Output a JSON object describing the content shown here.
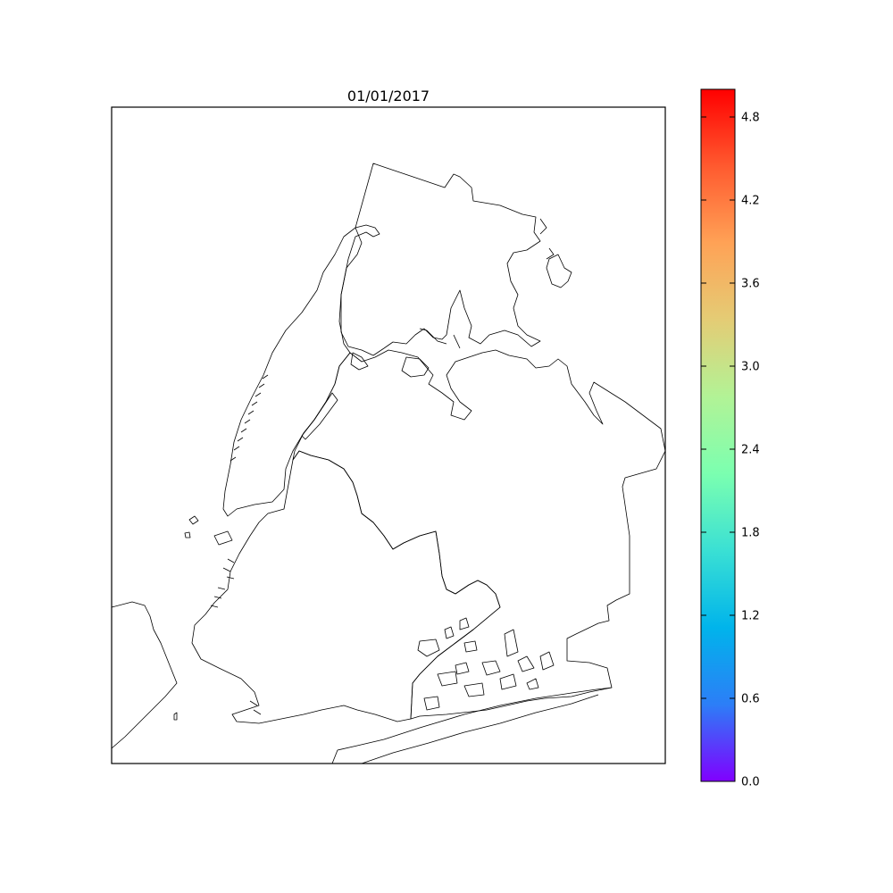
{
  "title": "01/01/2017",
  "map": {
    "region": "New York City boroughs",
    "boundary_color": "#000000",
    "background": "#ffffff"
  },
  "colorbar": {
    "colormap": "rainbow",
    "colors": [
      "#8000ff",
      "#2c7ef7",
      "#00b4eb",
      "#3ae0d4",
      "#7bffb0",
      "#b2f396",
      "#e4cc75",
      "#ffa256",
      "#ff5a2f",
      "#ff0000"
    ],
    "min": 0.0,
    "max": 5.0,
    "ticks": [
      "0.0",
      "0.6",
      "1.2",
      "1.8",
      "2.4",
      "3.0",
      "3.6",
      "4.2",
      "4.8"
    ],
    "tick_values": [
      0.0,
      0.6,
      1.2,
      1.8,
      2.4,
      3.0,
      3.6,
      4.2,
      4.8
    ]
  }
}
